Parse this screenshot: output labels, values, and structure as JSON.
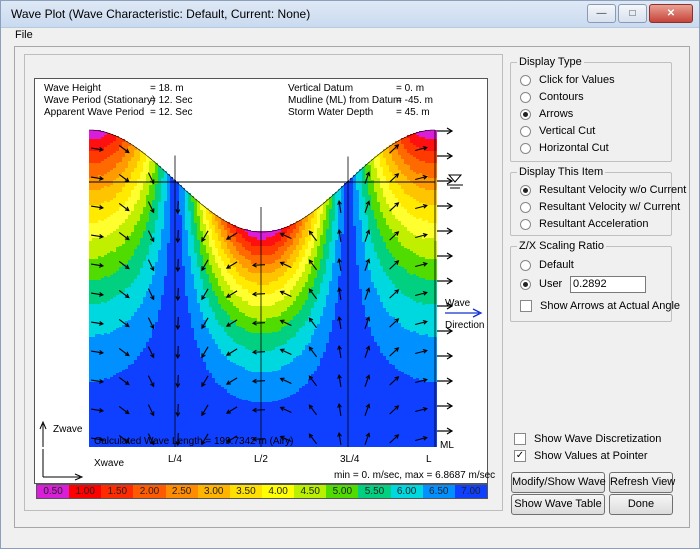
{
  "window": {
    "title": "Wave Plot  (Wave Characteristic: Default,   Current: None)"
  },
  "menu": {
    "file": "File"
  },
  "info": {
    "left": [
      "Wave Height",
      "Wave Period (Stationary)",
      "Apparent Wave Period"
    ],
    "left_vals": [
      "= 18. m",
      "= 12. Sec",
      "= 12. Sec"
    ],
    "right": [
      "Vertical Datum",
      "Mudline (ML) from Datum",
      "Storm Water Depth"
    ],
    "right_vals": [
      "= 0. m",
      "= -45. m",
      "= 45. m"
    ]
  },
  "plot": {
    "wave_label": "Wave",
    "direction_label": "Direction",
    "zwave": "Zwave",
    "xwave": "Xwave",
    "ml": "ML",
    "ticks": [
      "L/4",
      "L/2",
      "3L/4",
      "L"
    ],
    "wave_length": "Calculated Wave Length = 199.7342 m  (Airy)",
    "minmax": "min = 0. m/sec,  max = 6.8687 m/sec"
  },
  "legend": {
    "values": [
      "0.50",
      "1.00",
      "1.50",
      "2.00",
      "2.50",
      "3.00",
      "3.50",
      "4.00",
      "4.50",
      "5.00",
      "5.50",
      "6.00",
      "6.50",
      "7.00"
    ],
    "colors": [
      "#d81ed8",
      "#ff0000",
      "#ff2a00",
      "#ff5a00",
      "#ff8c00",
      "#ffb400",
      "#ffe000",
      "#ffff00",
      "#b8f000",
      "#50dc00",
      "#00d080",
      "#00d8e0",
      "#0090ff",
      "#1040ff"
    ]
  },
  "display_type": {
    "title": "Display Type",
    "options": [
      "Click for Values",
      "Contours",
      "Arrows",
      "Vertical Cut",
      "Horizontal Cut"
    ],
    "selected": 2
  },
  "display_item": {
    "title": "Display This Item",
    "options": [
      "Resultant Velocity w/o Current",
      "Resultant Velocity w/ Current",
      "Resultant Acceleration"
    ],
    "selected": 0
  },
  "scaling": {
    "title": "Z/X Scaling Ratio",
    "default_label": "Default",
    "user_label": "User",
    "user_value": "0.2892",
    "arrows_label": "Show Arrows at Actual Angle"
  },
  "checks": {
    "discretization": "Show Wave Discretization",
    "values_pointer": "Show Values at Pointer"
  },
  "buttons": {
    "modify": "Modify/Show Wave",
    "refresh": "Refresh View",
    "table": "Show Wave Table",
    "done": "Done"
  },
  "colors": {
    "title_bar": "#c9daf0",
    "arrow": "#000000",
    "direction_arrow": "#1030d0"
  }
}
